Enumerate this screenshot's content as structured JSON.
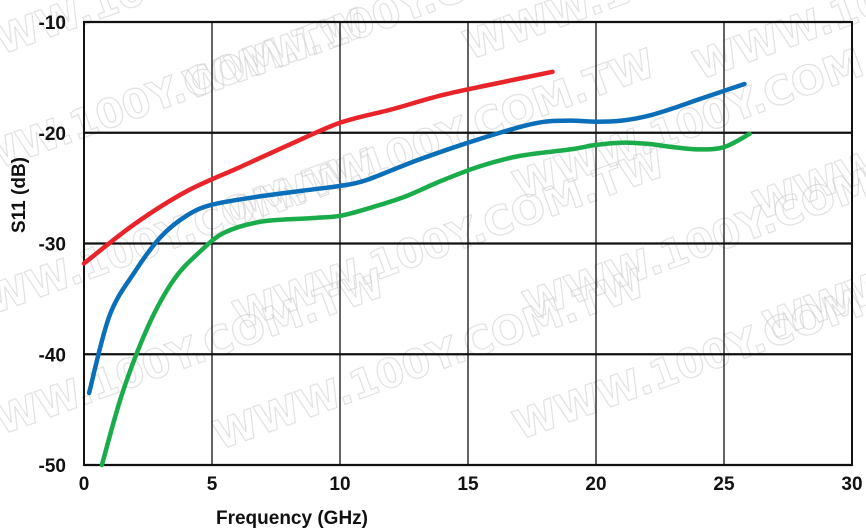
{
  "chart_data": {
    "type": "line",
    "title": "",
    "xlabel": "Frequency (GHz)",
    "ylabel": "S11 (dB)",
    "xlim": [
      0,
      30
    ],
    "ylim": [
      -50,
      -10
    ],
    "xticks": [
      "0",
      "5",
      "10",
      "15",
      "20",
      "25",
      "30"
    ],
    "yticks": [
      "-10",
      "-20",
      "-30",
      "-40",
      "-50"
    ],
    "grid": true,
    "series": [
      {
        "color": "#e8232a",
        "points": [
          [
            0,
            -31.8
          ],
          [
            2,
            -28.2
          ],
          [
            4,
            -25.3
          ],
          [
            6,
            -23.2
          ],
          [
            8,
            -21.1
          ],
          [
            10,
            -19.1
          ],
          [
            12,
            -17.9
          ],
          [
            14,
            -16.6
          ],
          [
            16,
            -15.6
          ],
          [
            18.3,
            -14.5
          ]
        ]
      },
      {
        "color": "#0a6fb8",
        "points": [
          [
            0.2,
            -43.5
          ],
          [
            1,
            -36.5
          ],
          [
            2,
            -32.5
          ],
          [
            3,
            -29.4
          ],
          [
            4,
            -27.5
          ],
          [
            5,
            -26.5
          ],
          [
            7,
            -25.7
          ],
          [
            9,
            -25.1
          ],
          [
            10,
            -24.8
          ],
          [
            11,
            -24.3
          ],
          [
            13,
            -22.5
          ],
          [
            15,
            -20.9
          ],
          [
            17,
            -19.5
          ],
          [
            18,
            -19.0
          ],
          [
            19,
            -18.9
          ],
          [
            20,
            -19.0
          ],
          [
            21,
            -18.9
          ],
          [
            22,
            -18.5
          ],
          [
            23,
            -17.8
          ],
          [
            24,
            -17.0
          ],
          [
            25.8,
            -15.6
          ]
        ]
      },
      {
        "color": "#1aab4b",
        "points": [
          [
            0.7,
            -50
          ],
          [
            1.5,
            -43.5
          ],
          [
            2.5,
            -37.5
          ],
          [
            3.5,
            -33.3
          ],
          [
            4.5,
            -30.8
          ],
          [
            5.5,
            -29.0
          ],
          [
            7,
            -28.0
          ],
          [
            9,
            -27.7
          ],
          [
            10,
            -27.5
          ],
          [
            11,
            -26.9
          ],
          [
            12.5,
            -25.8
          ],
          [
            14,
            -24.3
          ],
          [
            15.5,
            -23.0
          ],
          [
            17,
            -22.1
          ],
          [
            19,
            -21.5
          ],
          [
            20,
            -21.1
          ],
          [
            21,
            -20.9
          ],
          [
            22,
            -21.0
          ],
          [
            23,
            -21.3
          ],
          [
            24,
            -21.5
          ],
          [
            25,
            -21.3
          ],
          [
            26,
            -20.1
          ]
        ]
      }
    ]
  },
  "watermark": "WWW.100Y.COM.TW"
}
